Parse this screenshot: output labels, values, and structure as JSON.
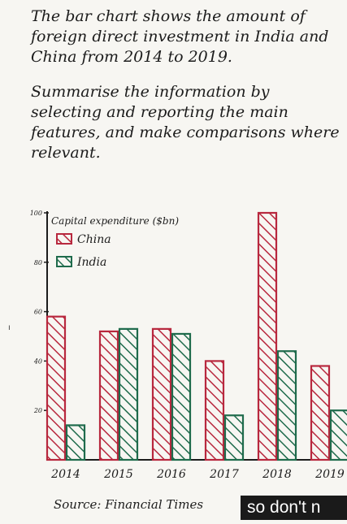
{
  "prompt": {
    "paragraph1": "The bar chart shows the amount of foreign direct investment in India and China from 2014 to 2019.",
    "paragraph2": "Summarise the information by selecting and reporting the main features, and make comparisons where relevant."
  },
  "chart_data": {
    "type": "bar",
    "title": "",
    "ylabel": "Capital expenditure ($bn)",
    "xlabel": "",
    "categories": [
      "2014",
      "2015",
      "2016",
      "2017",
      "2018",
      "2019"
    ],
    "series": [
      {
        "name": "China",
        "color": "#b8283e",
        "values": [
          58,
          52,
          53,
          40,
          100,
          38
        ]
      },
      {
        "name": "India",
        "color": "#1f6b4c",
        "values": [
          14,
          53,
          51,
          18,
          44,
          20
        ]
      }
    ],
    "yticks": [
      "20",
      "40",
      "60",
      "80",
      "100"
    ],
    "ylim": [
      0,
      100
    ],
    "grid": false,
    "legend_position": "top-left",
    "fill": "hatched"
  },
  "source_label": "Source: Financial Times",
  "caption_text": "so don't n"
}
